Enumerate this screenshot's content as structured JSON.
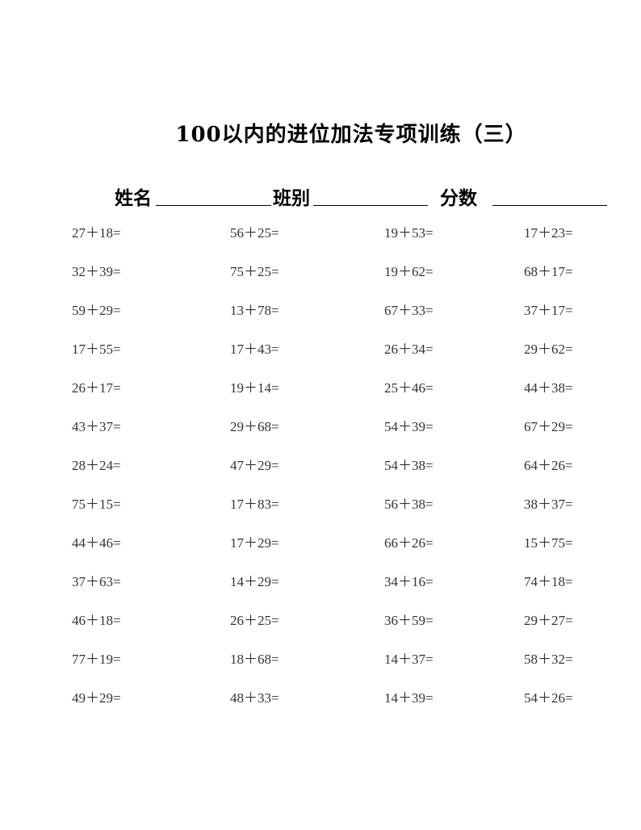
{
  "title": "100以内的进位加法专项训练（三）",
  "header": {
    "name_label": "姓名",
    "class_label": "班别",
    "score_label": "分数"
  },
  "rows": [
    [
      "27＋18=",
      "56＋25=",
      "19＋53=",
      "17＋23="
    ],
    [
      "32＋39=",
      "75＋25=",
      "19＋62=",
      "68＋17="
    ],
    [
      "59＋29=",
      "13＋78=",
      "67＋33=",
      "37＋17="
    ],
    [
      "17＋55=",
      "17＋43=",
      "26＋34=",
      "29＋62="
    ],
    [
      "26＋17=",
      "19＋14=",
      "25＋46=",
      "44＋38="
    ],
    [
      "43＋37=",
      "29＋68=",
      "54＋39=",
      "67＋29="
    ],
    [
      "28＋24=",
      "47＋29=",
      "54＋38=",
      "64＋26="
    ],
    [
      "75＋15=",
      "17＋83=",
      "56＋38=",
      "38＋37="
    ],
    [
      "44＋46=",
      "17＋29=",
      "66＋26=",
      "15＋75="
    ],
    [
      "37＋63=",
      "14＋29=",
      "34＋16=",
      "74＋18="
    ],
    [
      "46＋18=",
      "26＋25=",
      "36＋59=",
      "29＋27="
    ],
    [
      "77＋19=",
      "18＋68=",
      "14＋37=",
      "58＋32="
    ],
    [
      "49＋29=",
      "48＋33=",
      "14＋39=",
      "54＋26="
    ]
  ]
}
